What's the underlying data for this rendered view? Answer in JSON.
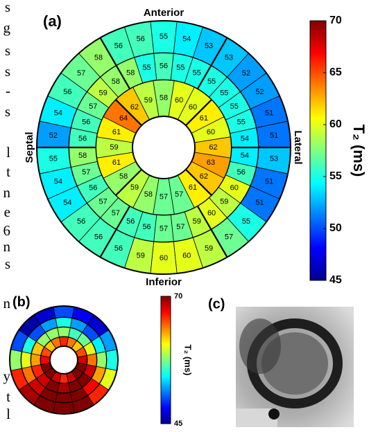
{
  "margin_text": [
    "s",
    "g",
    "s",
    "s",
    "-",
    "s",
    "l",
    "t",
    "n",
    "e",
    "6",
    "n",
    "s",
    "n",
    "y",
    "t",
    "l"
  ],
  "chart_data": [
    {
      "type": "bullseye",
      "label": "(a)",
      "annotations": {
        "top": "Anterior",
        "bottom": "Inferior",
        "left": "Septal",
        "right": "Lateral"
      },
      "rings": [
        {
          "values": [
            58,
            60,
            60,
            61,
            60,
            62,
            63,
            62,
            61,
            57,
            57,
            58,
            59,
            58,
            61,
            59,
            61,
            64,
            62,
            59
          ]
        },
        {
          "values": [
            56,
            55,
            55,
            55,
            55,
            55,
            55,
            54,
            54,
            56,
            60,
            59,
            60,
            59,
            57,
            57,
            56,
            56,
            57,
            57,
            56,
            57,
            58,
            56,
            56,
            57,
            59,
            58,
            58,
            55
          ]
        },
        {
          "values": [
            55,
            54,
            53,
            53,
            52,
            52,
            51,
            51,
            53,
            51,
            51,
            55,
            57,
            59,
            60,
            60,
            59,
            56,
            56,
            56,
            54,
            54,
            55,
            52,
            54,
            56,
            57,
            58,
            56,
            56
          ]
        }
      ],
      "colormap": "jet",
      "clim": [
        45,
        70
      ],
      "cticks": [
        45,
        50,
        55,
        60,
        65,
        70
      ],
      "colorbar_label": "T₂ (ms)",
      "show_values": true
    },
    {
      "type": "bullseye",
      "label": "(b)",
      "rings": [
        {
          "values": [
            66,
            64,
            62,
            65,
            68,
            70,
            70,
            68,
            66,
            68,
            70,
            70,
            67,
            65,
            62,
            64
          ]
        },
        {
          "values": [
            58,
            56,
            57,
            60,
            64,
            68,
            70,
            70,
            69,
            70,
            68,
            66,
            63,
            62,
            58,
            58
          ]
        },
        {
          "values": [
            55,
            52,
            50,
            54,
            58,
            63,
            67,
            70,
            70,
            70,
            68,
            64,
            60,
            55,
            50,
            52
          ]
        },
        {
          "values": [
            50,
            48,
            47,
            52,
            55,
            60,
            66,
            70,
            70,
            70,
            69,
            66,
            58,
            50,
            46,
            47
          ]
        }
      ],
      "colormap": "jet",
      "clim": [
        45,
        70
      ],
      "cticks": [
        45,
        70
      ],
      "colorbar_label": "T₂ (ms)",
      "show_values": false
    }
  ],
  "panel_c": {
    "label": "(c)"
  }
}
